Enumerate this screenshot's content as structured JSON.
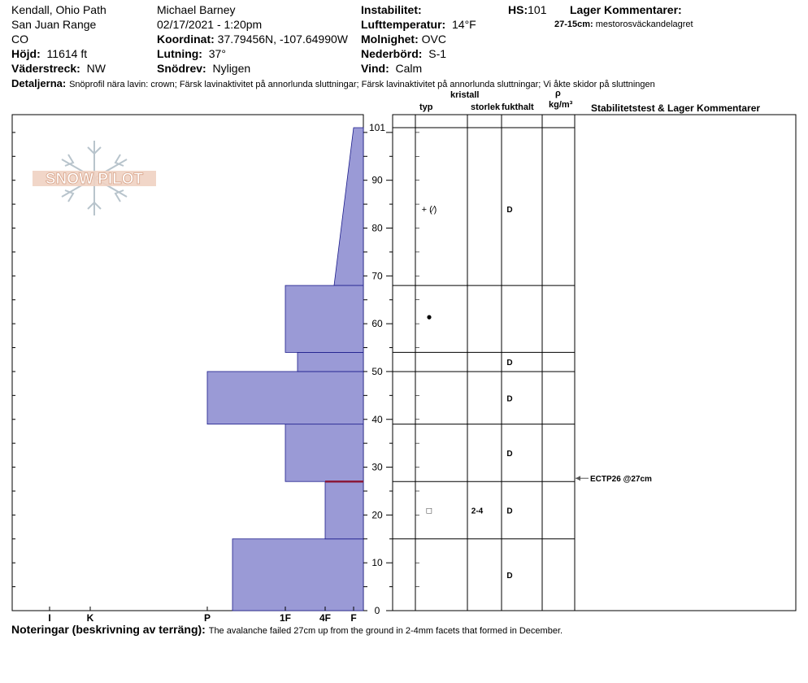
{
  "header": {
    "location": "Kendall, Ohio Path",
    "range": "San Juan Range",
    "state": "CO",
    "elevation_label": "Höjd:",
    "elevation_value": "11614 ft",
    "aspect_label": "Väderstreck:",
    "aspect_value": "NW",
    "observer": "Michael Barney",
    "datetime": "02/17/2021 - 1:20pm",
    "coord_label": "Koordinat:",
    "coord_value": "37.79456N, -107.64990W",
    "slope_label": "Lutning:",
    "slope_value": "37°",
    "drift_label": "Snödrev:",
    "drift_value": "Nyligen",
    "instability_label": "Instabilitet:",
    "airtemp_label": "Lufttemperatur:",
    "airtemp_value": "14°F",
    "sky_label": "Molnighet:",
    "sky_value": "OVC",
    "precip_label": "Nederbörd:",
    "precip_value": "S-1",
    "wind_label": "Vind:",
    "wind_value": "Calm",
    "hs_label": "HS:",
    "hs_value": "101",
    "layer_comments_label": "Lager Kommentarer:",
    "layer_comment_range": "27-15cm:",
    "layer_comment_text": "mestorosväckandelagret",
    "details_label": "Detaljerna:",
    "details_text": "Snöprofil nära lavin: crown; Färsk lavinaktivitet på annorlunda sluttningar; Färsk lavinaktivitet på annorlunda sluttningar; Vi åkte skidor på sluttningen"
  },
  "logo_text": "SNOW PILOT",
  "columns": {
    "crystal": "kristall",
    "type": "typ",
    "size": "storlek",
    "moisture": "fukthalt",
    "rho": "ρ",
    "density_unit": "kg/m³",
    "stability": "Stabilitetstest & Lager Kommentarer"
  },
  "footer": {
    "label": "Noteringar (beskrivning av terräng):",
    "text": "The avalanche failed 27cm up from the ground in 2-4mm facets that formed in December."
  },
  "colors": {
    "layer_fill": "#9a9ad6",
    "layer_stroke": "#1c1c8c",
    "weak_layer": "#8b1a3a"
  },
  "chart_data": {
    "type": "bar",
    "x_categories": [
      "I",
      "K",
      "P",
      "1F",
      "4F",
      "F"
    ],
    "y_range": [
      0,
      101
    ],
    "y_ticks": [
      0,
      10,
      20,
      30,
      40,
      50,
      60,
      70,
      80,
      90,
      101
    ],
    "hardness_layers": [
      {
        "bottom": 0,
        "top": 15,
        "hardness": "P-"
      },
      {
        "bottom": 15,
        "top": 27,
        "hardness": "4F"
      },
      {
        "bottom": 27,
        "top": 39,
        "hardness": "1F"
      },
      {
        "bottom": 39,
        "top": 50,
        "hardness": "P"
      },
      {
        "bottom": 50,
        "top": 54,
        "hardness": "1F-"
      },
      {
        "bottom": 54,
        "top": 68,
        "hardness": "1F"
      },
      {
        "bottom": 68,
        "top": 101,
        "hardness": "4F to F"
      }
    ],
    "layer_boundaries": [
      15,
      27,
      39,
      50,
      54,
      68,
      101
    ],
    "layer_rows": [
      {
        "bottom": 0,
        "top": 15,
        "grain": "",
        "size": "",
        "moisture": "D"
      },
      {
        "bottom": 15,
        "top": 27,
        "grain": "□",
        "size": "2-4",
        "moisture": "D"
      },
      {
        "bottom": 27,
        "top": 39,
        "grain": "",
        "size": "",
        "moisture": "D"
      },
      {
        "bottom": 39,
        "top": 50,
        "grain": "",
        "size": "",
        "moisture": "D"
      },
      {
        "bottom": 50,
        "top": 54,
        "grain": "",
        "size": "",
        "moisture": "D"
      },
      {
        "bottom": 54,
        "top": 68,
        "grain": "●",
        "size": "",
        "moisture": ""
      },
      {
        "bottom": 68,
        "top": 101,
        "grain": "+ (⁄)",
        "size": "",
        "moisture": "D"
      }
    ],
    "weak_layer_height": 27,
    "test_results": [
      {
        "height": 27,
        "label": "ECTP26 @27cm"
      }
    ]
  }
}
